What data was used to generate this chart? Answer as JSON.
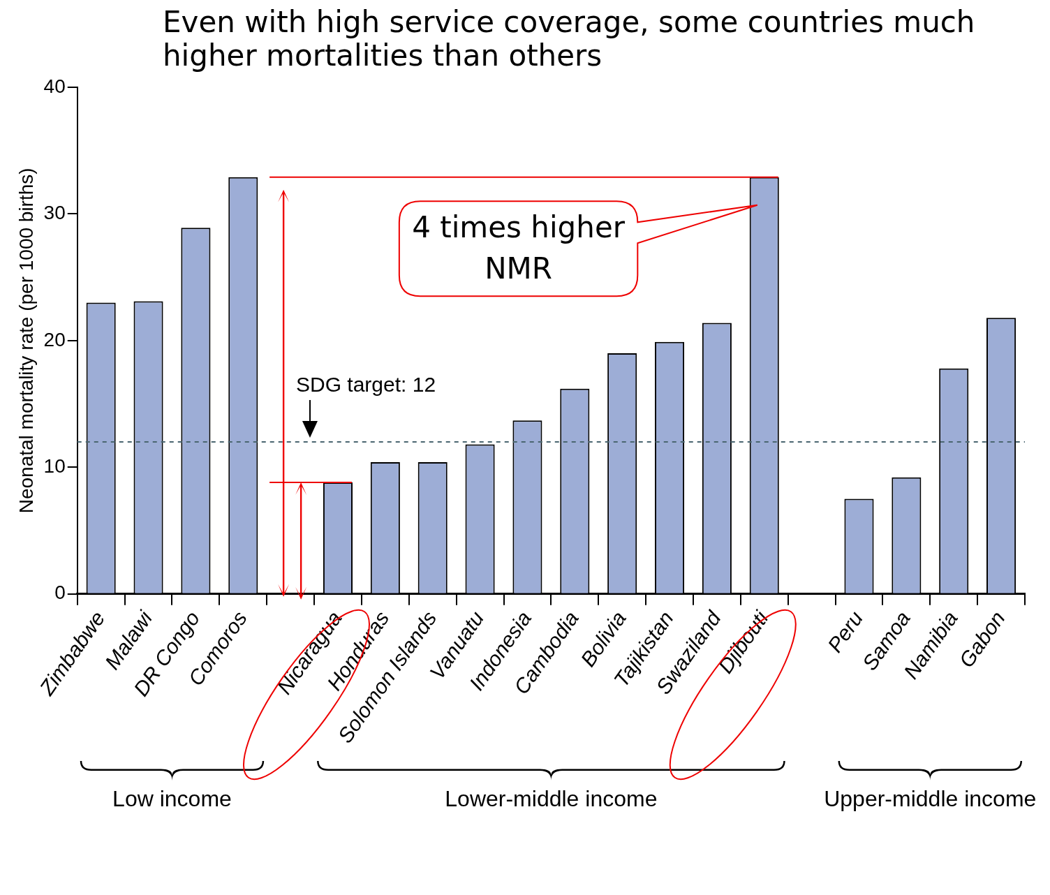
{
  "chart_data": {
    "type": "bar",
    "title": "Even with high service coverage, some countries much higher mortalities than others",
    "ylabel": "Neonatal mortality rate (per 1000 births)",
    "categories": [
      "Zimbabwe",
      "Malawi",
      "DR Congo",
      "Comoros",
      null,
      "Nicaragua",
      "Honduras",
      "Solomon Islands",
      "Vanuatu",
      "Indonesia",
      "Cambodia",
      "Bolivia",
      "Tajikistan",
      "Swaziland",
      "Djibouti",
      null,
      "Peru",
      "Samoa",
      "Namibia",
      "Gabon"
    ],
    "values": [
      23,
      23.1,
      28.9,
      32.9,
      null,
      8.8,
      10.4,
      10.4,
      11.8,
      13.7,
      16.2,
      19,
      19.9,
      21.4,
      32.9,
      null,
      7.5,
      9.2,
      17.8,
      21.8
    ],
    "color": "#9dadd6",
    "ylim": [
      0,
      40
    ],
    "yticks": [
      0,
      10,
      20,
      30,
      40
    ],
    "grid": false,
    "legend": false,
    "ref_lines": [
      {
        "axis": "y",
        "value": 12,
        "label": "SDG target: 12",
        "color": "#4a6670",
        "line_style": "dashed"
      },
      {
        "axis": "y",
        "value": 32.9,
        "color": "#ee0000",
        "line_style": "solid"
      },
      {
        "axis": "y",
        "value": 8.8,
        "color": "#ee0000",
        "line_style": "solid"
      }
    ],
    "annotations": [
      "4 times higher NMR",
      "Low income",
      "Lower-middle income",
      "Upper-middle income"
    ]
  }
}
